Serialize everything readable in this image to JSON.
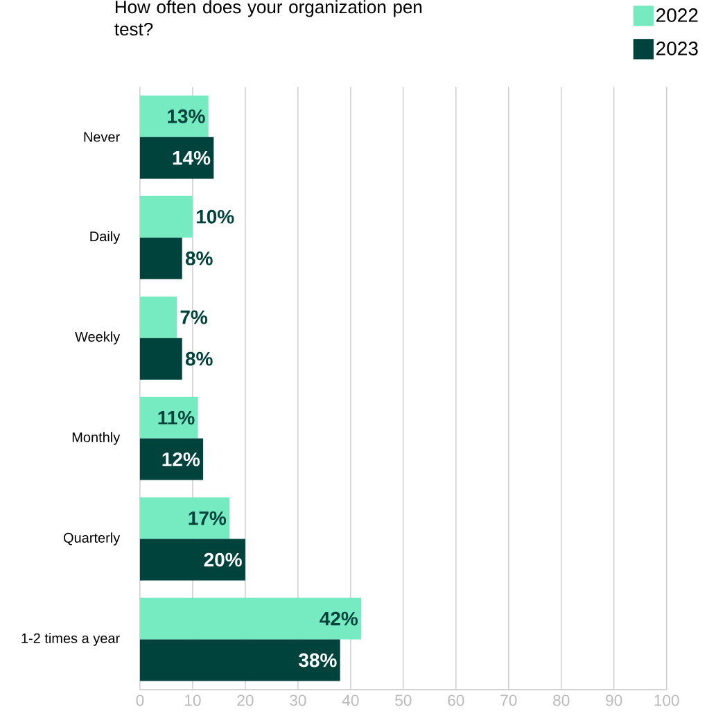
{
  "chart_data": {
    "type": "bar",
    "orientation": "horizontal",
    "title": "How often does your organization pen test?",
    "categories": [
      "Never",
      "Daily",
      "Weekly",
      "Monthly",
      "Quarterly",
      "1-2 times a year"
    ],
    "series": [
      {
        "name": "2022",
        "color": "#76ebc2",
        "values": [
          13,
          10,
          7,
          11,
          17,
          42
        ],
        "value_labels": [
          "13%",
          "10%",
          "7%",
          "11%",
          "17%",
          "42%"
        ]
      },
      {
        "name": "2023",
        "color": "#00433c",
        "values": [
          14,
          8,
          8,
          12,
          20,
          38
        ],
        "value_labels": [
          "14%",
          "8%",
          "8%",
          "12%",
          "20%",
          "38%"
        ]
      }
    ],
    "xlim": [
      0,
      100
    ],
    "xticks": [
      0,
      10,
      20,
      30,
      40,
      50,
      60,
      70,
      80,
      90,
      100
    ],
    "grid": "x",
    "legend": "top right"
  }
}
